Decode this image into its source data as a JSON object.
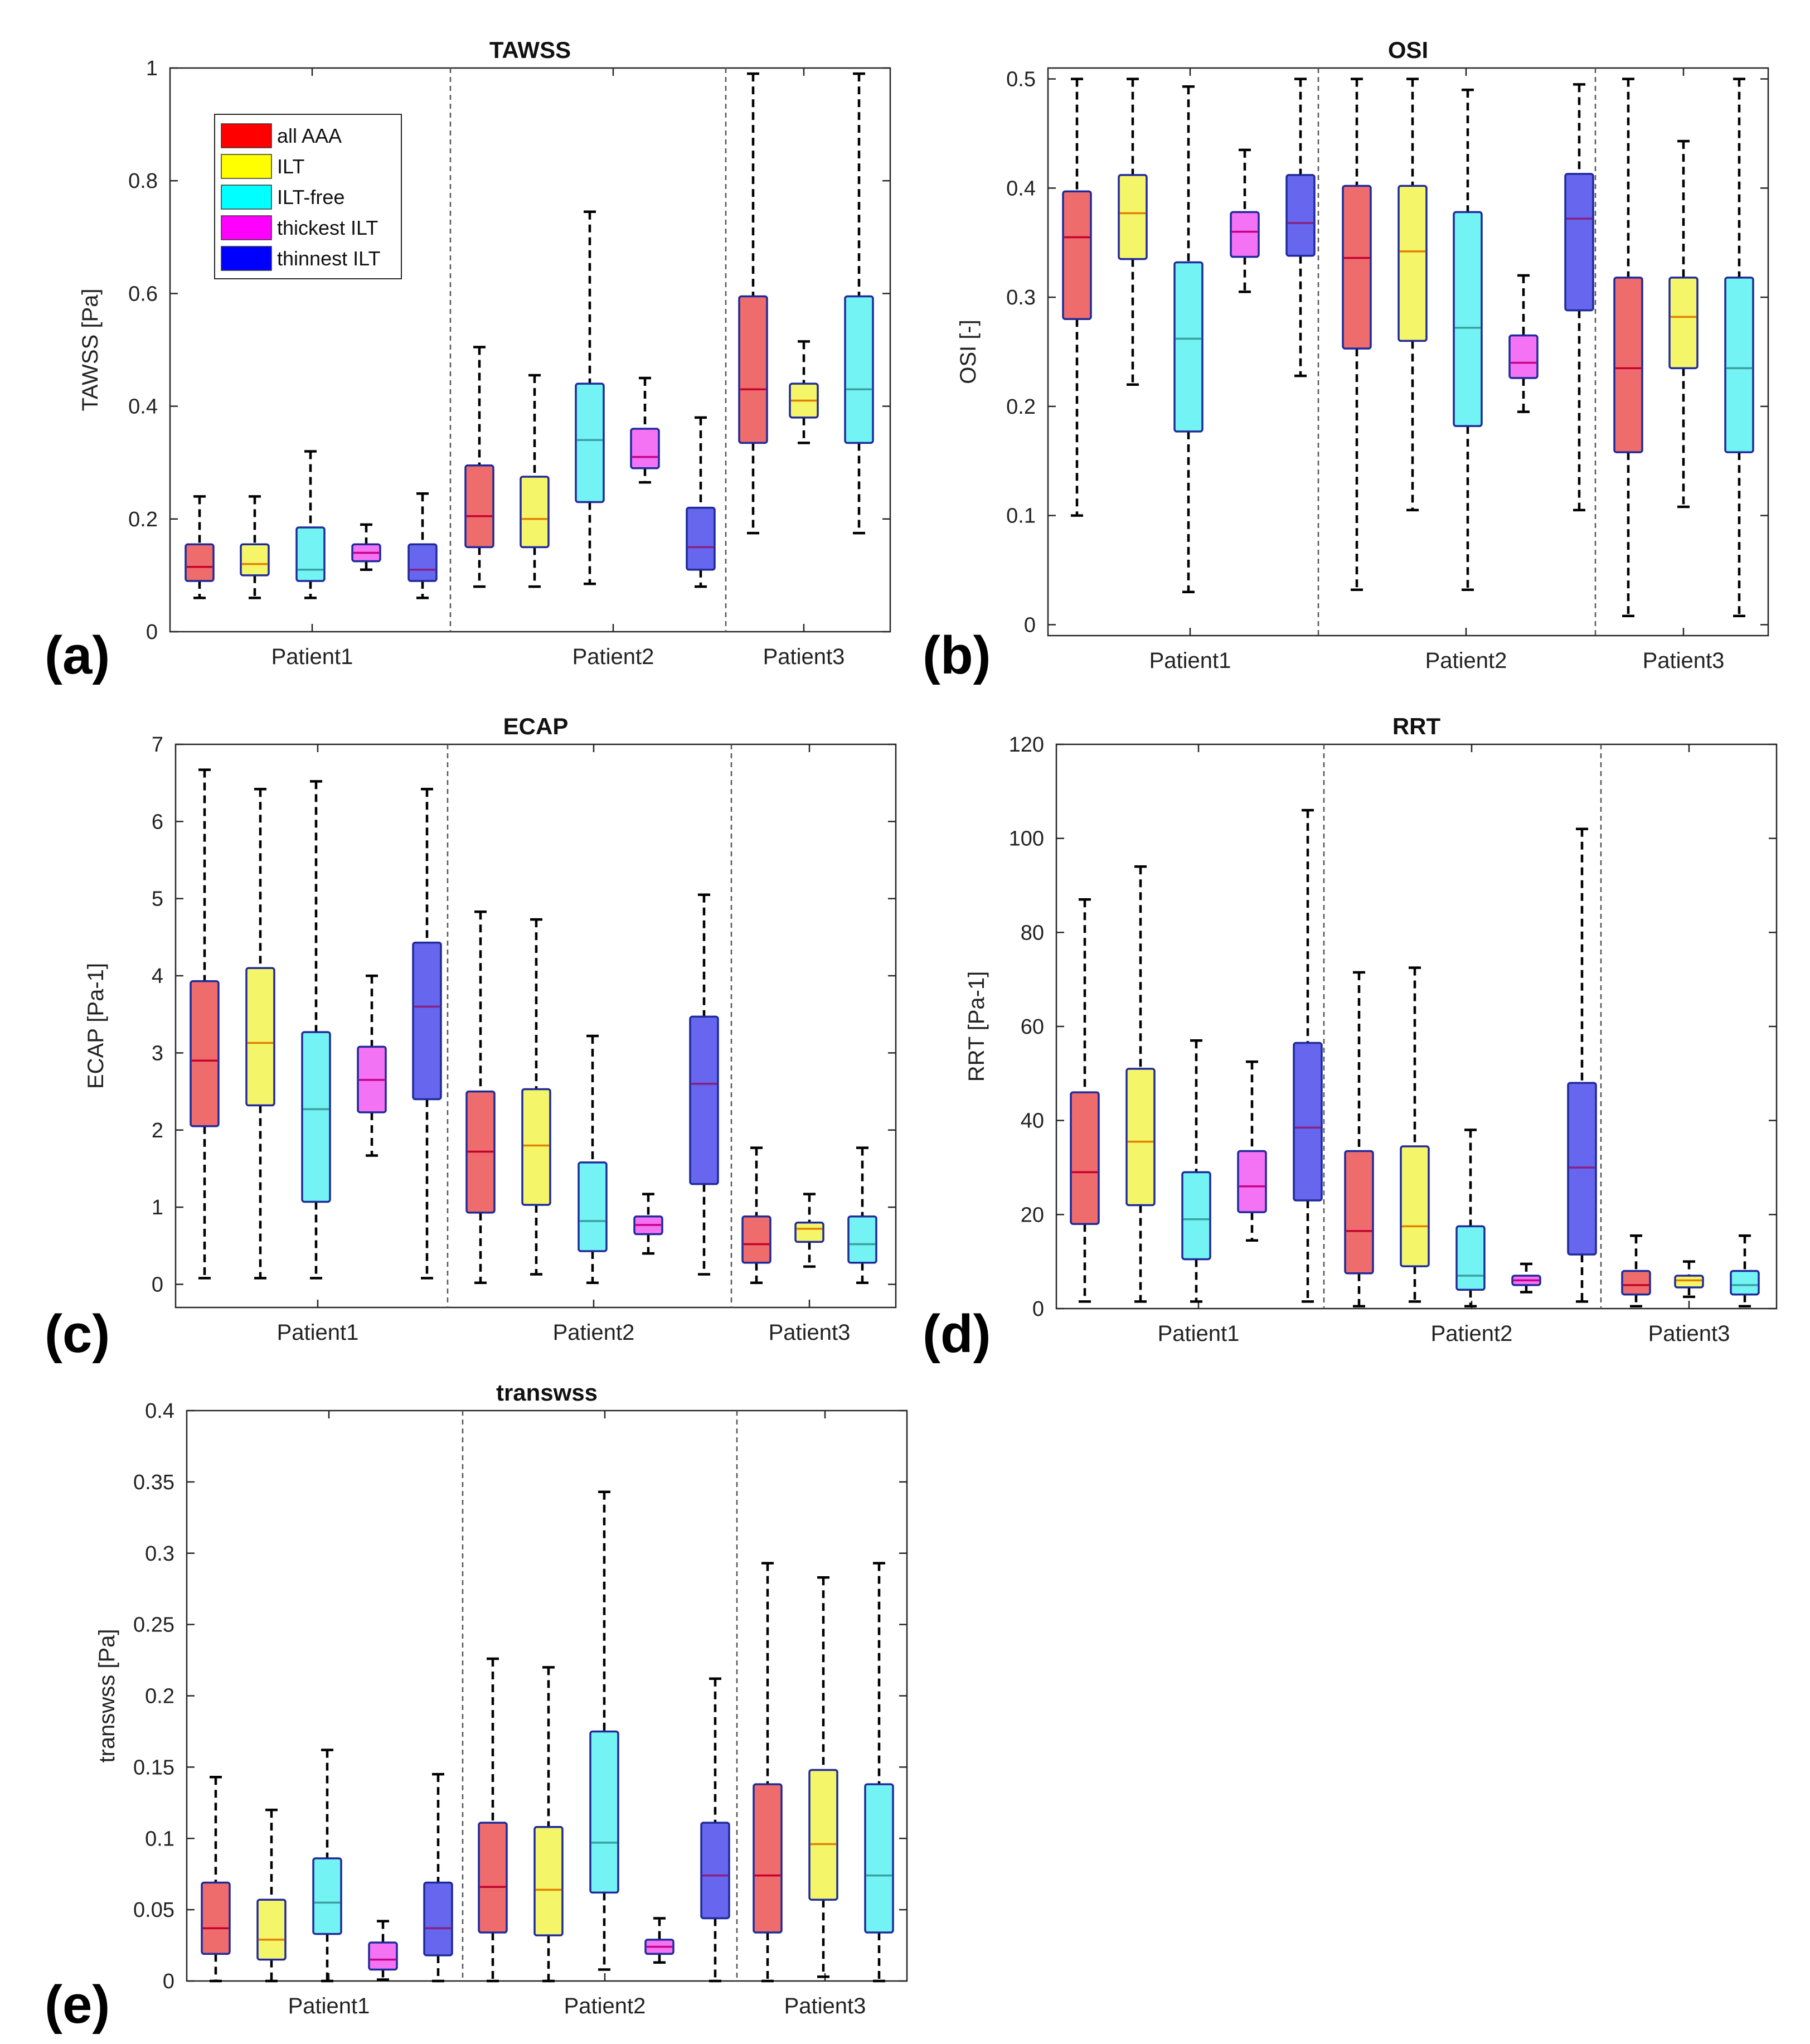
{
  "colors": {
    "axis": "#262626",
    "box_edge": "#1f2a9a",
    "whisker": "#000000",
    "divider": "#555555"
  },
  "legend": {
    "entries": [
      {
        "label": "all AAA",
        "color": "#ff0000"
      },
      {
        "label": "ILT",
        "color": "#ffff00"
      },
      {
        "label": "ILT-free",
        "color": "#00ffff"
      },
      {
        "label": "thickest ILT",
        "color": "#ff00ff"
      },
      {
        "label": "thinnest ILT",
        "color": "#0000ff"
      }
    ]
  },
  "chart_data": [
    {
      "type": "box",
      "id": "a",
      "panel_label": "(a)",
      "title": "TAWSS",
      "ylabel": "TAWSS [Pa]",
      "ylim": [
        0,
        1
      ],
      "yticks": [
        0,
        0.2,
        0.4,
        0.6,
        0.8,
        1
      ],
      "ytick_labels": [
        "0",
        "0.2",
        "0.4",
        "0.6",
        "0.8",
        "1"
      ],
      "groups": [
        "Patient1",
        "Patient2",
        "Patient3"
      ],
      "show_legend": true,
      "boxes": [
        {
          "group": "Patient1",
          "series": "all AAA",
          "min": 0.06,
          "q1": 0.09,
          "median": 0.115,
          "q3": 0.155,
          "max": 0.24
        },
        {
          "group": "Patient1",
          "series": "ILT",
          "min": 0.06,
          "q1": 0.1,
          "median": 0.12,
          "q3": 0.155,
          "max": 0.24
        },
        {
          "group": "Patient1",
          "series": "ILT-free",
          "min": 0.06,
          "q1": 0.09,
          "median": 0.11,
          "q3": 0.185,
          "max": 0.32
        },
        {
          "group": "Patient1",
          "series": "thickest ILT",
          "min": 0.11,
          "q1": 0.125,
          "median": 0.14,
          "q3": 0.155,
          "max": 0.19
        },
        {
          "group": "Patient1",
          "series": "thinnest ILT",
          "min": 0.06,
          "q1": 0.09,
          "median": 0.11,
          "q3": 0.155,
          "max": 0.245
        },
        {
          "group": "Patient2",
          "series": "all AAA",
          "min": 0.08,
          "q1": 0.15,
          "median": 0.205,
          "q3": 0.295,
          "max": 0.505
        },
        {
          "group": "Patient2",
          "series": "ILT",
          "min": 0.08,
          "q1": 0.15,
          "median": 0.2,
          "q3": 0.275,
          "max": 0.455
        },
        {
          "group": "Patient2",
          "series": "ILT-free",
          "min": 0.085,
          "q1": 0.23,
          "median": 0.34,
          "q3": 0.44,
          "max": 0.745
        },
        {
          "group": "Patient2",
          "series": "thickest ILT",
          "min": 0.265,
          "q1": 0.29,
          "median": 0.31,
          "q3": 0.36,
          "max": 0.45
        },
        {
          "group": "Patient2",
          "series": "thinnest ILT",
          "min": 0.08,
          "q1": 0.11,
          "median": 0.15,
          "q3": 0.22,
          "max": 0.38
        },
        {
          "group": "Patient3",
          "series": "all AAA",
          "min": 0.175,
          "q1": 0.335,
          "median": 0.43,
          "q3": 0.595,
          "max": 0.99
        },
        {
          "group": "Patient3",
          "series": "ILT",
          "min": 0.335,
          "q1": 0.38,
          "median": 0.41,
          "q3": 0.44,
          "max": 0.515
        },
        {
          "group": "Patient3",
          "series": "ILT-free",
          "min": 0.175,
          "q1": 0.335,
          "median": 0.43,
          "q3": 0.595,
          "max": 0.99
        }
      ]
    },
    {
      "type": "box",
      "id": "b",
      "panel_label": "(b)",
      "title": "OSI",
      "ylabel": "OSI [-]",
      "ylim": [
        -0.01,
        0.51
      ],
      "yticks": [
        0,
        0.1,
        0.2,
        0.3,
        0.4,
        0.5
      ],
      "ytick_labels": [
        "0",
        "0.1",
        "0.2",
        "0.3",
        "0.4",
        "0.5"
      ],
      "groups": [
        "Patient1",
        "Patient2",
        "Patient3"
      ],
      "show_legend": false,
      "boxes": [
        {
          "group": "Patient1",
          "series": "all AAA",
          "min": 0.1,
          "q1": 0.28,
          "median": 0.355,
          "q3": 0.397,
          "max": 0.5
        },
        {
          "group": "Patient1",
          "series": "ILT",
          "min": 0.22,
          "q1": 0.335,
          "median": 0.377,
          "q3": 0.412,
          "max": 0.5
        },
        {
          "group": "Patient1",
          "series": "ILT-free",
          "min": 0.03,
          "q1": 0.177,
          "median": 0.262,
          "q3": 0.332,
          "max": 0.493
        },
        {
          "group": "Patient1",
          "series": "thickest ILT",
          "min": 0.305,
          "q1": 0.337,
          "median": 0.36,
          "q3": 0.378,
          "max": 0.435
        },
        {
          "group": "Patient1",
          "series": "thinnest ILT",
          "min": 0.228,
          "q1": 0.338,
          "median": 0.368,
          "q3": 0.412,
          "max": 0.5
        },
        {
          "group": "Patient2",
          "series": "all AAA",
          "min": 0.032,
          "q1": 0.253,
          "median": 0.336,
          "q3": 0.402,
          "max": 0.5
        },
        {
          "group": "Patient2",
          "series": "ILT",
          "min": 0.105,
          "q1": 0.26,
          "median": 0.342,
          "q3": 0.402,
          "max": 0.5
        },
        {
          "group": "Patient2",
          "series": "ILT-free",
          "min": 0.032,
          "q1": 0.182,
          "median": 0.272,
          "q3": 0.378,
          "max": 0.49
        },
        {
          "group": "Patient2",
          "series": "thickest ILT",
          "min": 0.195,
          "q1": 0.226,
          "median": 0.24,
          "q3": 0.265,
          "max": 0.32
        },
        {
          "group": "Patient2",
          "series": "thinnest ILT",
          "min": 0.105,
          "q1": 0.288,
          "median": 0.372,
          "q3": 0.413,
          "max": 0.495
        },
        {
          "group": "Patient3",
          "series": "all AAA",
          "min": 0.008,
          "q1": 0.158,
          "median": 0.235,
          "q3": 0.318,
          "max": 0.5
        },
        {
          "group": "Patient3",
          "series": "ILT",
          "min": 0.108,
          "q1": 0.235,
          "median": 0.282,
          "q3": 0.318,
          "max": 0.443
        },
        {
          "group": "Patient3",
          "series": "ILT-free",
          "min": 0.008,
          "q1": 0.158,
          "median": 0.235,
          "q3": 0.318,
          "max": 0.5
        }
      ]
    },
    {
      "type": "box",
      "id": "c",
      "panel_label": "(c)",
      "title": "ECAP",
      "ylabel": "ECAP [Pa-1]",
      "ylim": [
        -0.3,
        7
      ],
      "yticks": [
        0,
        1,
        2,
        3,
        4,
        5,
        6,
        7
      ],
      "ytick_labels": [
        "0",
        "1",
        "2",
        "3",
        "4",
        "5",
        "6",
        "7"
      ],
      "groups": [
        "Patient1",
        "Patient2",
        "Patient3"
      ],
      "show_legend": false,
      "boxes": [
        {
          "group": "Patient1",
          "series": "all AAA",
          "min": 0.08,
          "q1": 2.05,
          "median": 2.9,
          "q3": 3.93,
          "max": 6.67
        },
        {
          "group": "Patient1",
          "series": "ILT",
          "min": 0.08,
          "q1": 2.32,
          "median": 3.13,
          "q3": 4.1,
          "max": 6.42
        },
        {
          "group": "Patient1",
          "series": "ILT-free",
          "min": 0.08,
          "q1": 1.07,
          "median": 2.27,
          "q3": 3.27,
          "max": 6.52
        },
        {
          "group": "Patient1",
          "series": "thickest ILT",
          "min": 1.67,
          "q1": 2.23,
          "median": 2.65,
          "q3": 3.08,
          "max": 4.0
        },
        {
          "group": "Patient1",
          "series": "thinnest ILT",
          "min": 0.08,
          "q1": 2.4,
          "median": 3.6,
          "q3": 4.43,
          "max": 6.42
        },
        {
          "group": "Patient2",
          "series": "all AAA",
          "min": 0.02,
          "q1": 0.93,
          "median": 1.72,
          "q3": 2.5,
          "max": 4.83
        },
        {
          "group": "Patient2",
          "series": "ILT",
          "min": 0.13,
          "q1": 1.03,
          "median": 1.8,
          "q3": 2.53,
          "max": 4.73
        },
        {
          "group": "Patient2",
          "series": "ILT-free",
          "min": 0.02,
          "q1": 0.43,
          "median": 0.82,
          "q3": 1.58,
          "max": 3.22
        },
        {
          "group": "Patient2",
          "series": "thickest ILT",
          "min": 0.4,
          "q1": 0.65,
          "median": 0.77,
          "q3": 0.88,
          "max": 1.17
        },
        {
          "group": "Patient2",
          "series": "thinnest ILT",
          "min": 0.13,
          "q1": 1.3,
          "median": 2.6,
          "q3": 3.47,
          "max": 5.05
        },
        {
          "group": "Patient3",
          "series": "all AAA",
          "min": 0.02,
          "q1": 0.28,
          "median": 0.52,
          "q3": 0.88,
          "max": 1.77
        },
        {
          "group": "Patient3",
          "series": "ILT",
          "min": 0.23,
          "q1": 0.55,
          "median": 0.72,
          "q3": 0.8,
          "max": 1.17
        },
        {
          "group": "Patient3",
          "series": "ILT-free",
          "min": 0.02,
          "q1": 0.28,
          "median": 0.52,
          "q3": 0.88,
          "max": 1.77
        }
      ]
    },
    {
      "type": "box",
      "id": "d",
      "panel_label": "(d)",
      "title": "RRT",
      "ylabel": "RRT [Pa-1]",
      "ylim": [
        0,
        120
      ],
      "yticks": [
        0,
        20,
        40,
        60,
        80,
        100,
        120
      ],
      "ytick_labels": [
        "0",
        "20",
        "40",
        "60",
        "80",
        "100",
        "120"
      ],
      "groups": [
        "Patient1",
        "Patient2",
        "Patient3"
      ],
      "show_legend": false,
      "boxes": [
        {
          "group": "Patient1",
          "series": "all AAA",
          "min": 1.5,
          "q1": 18,
          "median": 29,
          "q3": 46,
          "max": 87
        },
        {
          "group": "Patient1",
          "series": "ILT",
          "min": 1.5,
          "q1": 22,
          "median": 35.5,
          "q3": 51,
          "max": 94
        },
        {
          "group": "Patient1",
          "series": "ILT-free",
          "min": 1.5,
          "q1": 10.5,
          "median": 19,
          "q3": 29,
          "max": 57
        },
        {
          "group": "Patient1",
          "series": "thickest ILT",
          "min": 14.5,
          "q1": 20.5,
          "median": 26,
          "q3": 33.5,
          "max": 52.5
        },
        {
          "group": "Patient1",
          "series": "thinnest ILT",
          "min": 1.5,
          "q1": 23,
          "median": 38.5,
          "q3": 56.5,
          "max": 106
        },
        {
          "group": "Patient2",
          "series": "all AAA",
          "min": 0.5,
          "q1": 7.5,
          "median": 16.5,
          "q3": 33.5,
          "max": 71.5
        },
        {
          "group": "Patient2",
          "series": "ILT",
          "min": 1.5,
          "q1": 9,
          "median": 17.5,
          "q3": 34.5,
          "max": 72.5
        },
        {
          "group": "Patient2",
          "series": "ILT-free",
          "min": 0.5,
          "q1": 4,
          "median": 7,
          "q3": 17.5,
          "max": 38
        },
        {
          "group": "Patient2",
          "series": "thickest ILT",
          "min": 3.5,
          "q1": 5,
          "median": 6,
          "q3": 7,
          "max": 9.5
        },
        {
          "group": "Patient2",
          "series": "thinnest ILT",
          "min": 1.5,
          "q1": 11.5,
          "median": 30,
          "q3": 48,
          "max": 102
        },
        {
          "group": "Patient3",
          "series": "all AAA",
          "min": 0.5,
          "q1": 3,
          "median": 5,
          "q3": 8,
          "max": 15.5
        },
        {
          "group": "Patient3",
          "series": "ILT",
          "min": 2.5,
          "q1": 4.5,
          "median": 6,
          "q3": 7,
          "max": 10
        },
        {
          "group": "Patient3",
          "series": "ILT-free",
          "min": 0.5,
          "q1": 3,
          "median": 5,
          "q3": 8,
          "max": 15.5
        }
      ]
    },
    {
      "type": "box",
      "id": "e",
      "panel_label": "(e)",
      "title": "transwss",
      "ylabel": "transwss [Pa]",
      "ylim": [
        0,
        0.4
      ],
      "yticks": [
        0,
        0.05,
        0.1,
        0.15,
        0.2,
        0.25,
        0.3,
        0.35,
        0.4
      ],
      "ytick_labels": [
        "0",
        "0.05",
        "0.1",
        "0.15",
        "0.2",
        "0.25",
        "0.3",
        "0.35",
        "0.4"
      ],
      "groups": [
        "Patient1",
        "Patient2",
        "Patient3"
      ],
      "show_legend": false,
      "boxes": [
        {
          "group": "Patient1",
          "series": "all AAA",
          "min": 0.0,
          "q1": 0.019,
          "median": 0.037,
          "q3": 0.069,
          "max": 0.143
        },
        {
          "group": "Patient1",
          "series": "ILT",
          "min": 0.0,
          "q1": 0.015,
          "median": 0.029,
          "q3": 0.057,
          "max": 0.12
        },
        {
          "group": "Patient1",
          "series": "ILT-free",
          "min": 0.0,
          "q1": 0.033,
          "median": 0.055,
          "q3": 0.086,
          "max": 0.162
        },
        {
          "group": "Patient1",
          "series": "thickest ILT",
          "min": 0.001,
          "q1": 0.008,
          "median": 0.015,
          "q3": 0.027,
          "max": 0.042
        },
        {
          "group": "Patient1",
          "series": "thinnest ILT",
          "min": 0.0,
          "q1": 0.018,
          "median": 0.037,
          "q3": 0.069,
          "max": 0.145
        },
        {
          "group": "Patient2",
          "series": "all AAA",
          "min": 0.0,
          "q1": 0.034,
          "median": 0.066,
          "q3": 0.111,
          "max": 0.226
        },
        {
          "group": "Patient2",
          "series": "ILT",
          "min": 0.0,
          "q1": 0.032,
          "median": 0.064,
          "q3": 0.108,
          "max": 0.22
        },
        {
          "group": "Patient2",
          "series": "ILT-free",
          "min": 0.008,
          "q1": 0.062,
          "median": 0.097,
          "q3": 0.175,
          "max": 0.343
        },
        {
          "group": "Patient2",
          "series": "thickest ILT",
          "min": 0.013,
          "q1": 0.019,
          "median": 0.024,
          "q3": 0.029,
          "max": 0.044
        },
        {
          "group": "Patient2",
          "series": "thinnest ILT",
          "min": 0.0,
          "q1": 0.044,
          "median": 0.074,
          "q3": 0.111,
          "max": 0.212
        },
        {
          "group": "Patient3",
          "series": "all AAA",
          "min": 0.0,
          "q1": 0.034,
          "median": 0.074,
          "q3": 0.138,
          "max": 0.293
        },
        {
          "group": "Patient3",
          "series": "ILT",
          "min": 0.003,
          "q1": 0.057,
          "median": 0.096,
          "q3": 0.148,
          "max": 0.283
        },
        {
          "group": "Patient3",
          "series": "ILT-free",
          "min": 0.0,
          "q1": 0.034,
          "median": 0.074,
          "q3": 0.138,
          "max": 0.293
        }
      ]
    }
  ]
}
